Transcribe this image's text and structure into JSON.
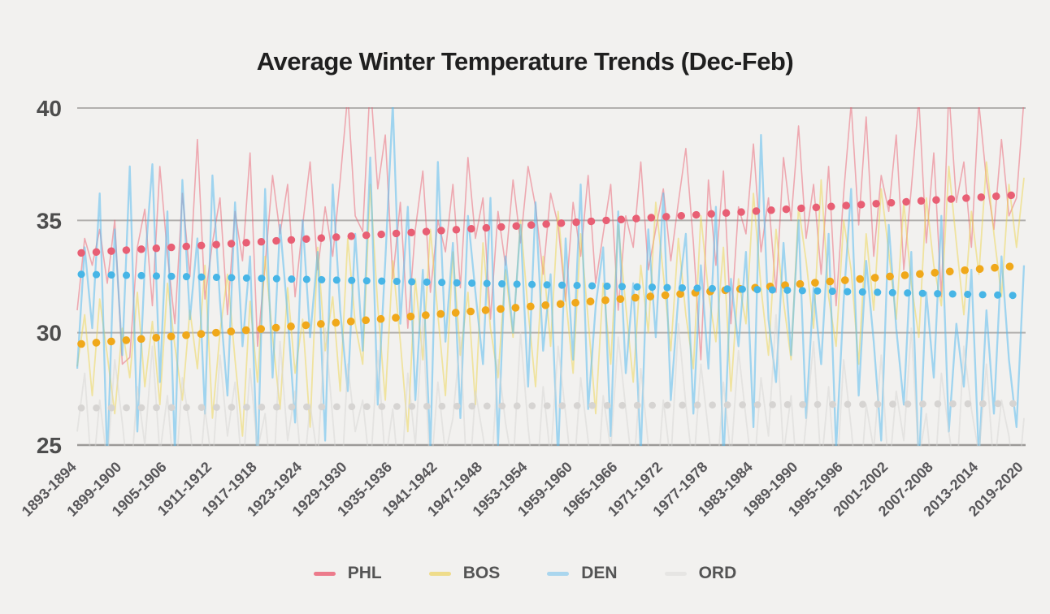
{
  "style": {
    "background": "#f2f1ef",
    "gridline_color": "#b2b0ae",
    "axis_line_color": "#9c9a98",
    "y_label_color": "#4d4d4d",
    "x_label_color": "#58575a",
    "title_color": "#1f1f1f",
    "legend_label_color": "#545454"
  },
  "chart_data": {
    "type": "line",
    "title": "Average Winter Temperature Trends (Dec-Feb)",
    "grid": true,
    "legend_position": "bottom-center",
    "y_axis": {
      "min": 25,
      "max": 40,
      "ticks": [
        40,
        35,
        30,
        25
      ]
    },
    "x_axis": {
      "first_season": "1893-1894",
      "last_season": "2019-2020",
      "season_count": 127,
      "tick_every_years": 6,
      "tick_labels": [
        "1893-1894",
        "1899-1900",
        "1905-1906",
        "1911-1912",
        "1917-1918",
        "1923-1924",
        "1929-1930",
        "1935-1936",
        "1941-1942",
        "1947-1948",
        "1953-1954",
        "1959-1960",
        "1965-1966",
        "1971-1972",
        "1977-1978",
        "1983-1984",
        "1989-1990",
        "1995-1996",
        "2001-2002",
        "2007-2008",
        "2013-2014",
        "2019-2020"
      ]
    },
    "series": [
      {
        "name": "PHL",
        "dot_color": "#e85f74",
        "line_color": "#ea5f72",
        "line_opacity": 0.5,
        "line_width": 1.6,
        "dot_size": 9.4,
        "legend_color": "#ec7b8b",
        "trend": {
          "start": 33.55,
          "end": 36.15
        },
        "values": [
          31.0,
          34.2,
          33.0,
          34.6,
          32.2,
          35.0,
          28.6,
          28.9,
          33.8,
          35.5,
          31.2,
          37.4,
          33.5,
          30.4,
          36.2,
          32.5,
          38.6,
          31.5,
          34.0,
          36.0,
          30.8,
          35.4,
          33.2,
          38.0,
          29.4,
          33.0,
          37.0,
          34.4,
          36.6,
          31.6,
          34.8,
          37.6,
          32.8,
          35.6,
          33.4,
          36.8,
          40.6,
          35.2,
          34.5,
          41.2,
          36.4,
          38.8,
          32.4,
          35.8,
          30.2,
          34.6,
          37.2,
          31.8,
          35.0,
          33.6,
          36.6,
          32.0,
          37.8,
          34.2,
          36.0,
          30.6,
          35.4,
          33.0,
          36.8,
          34.0,
          37.4,
          35.6,
          32.6,
          36.2,
          34.8,
          31.4,
          35.8,
          33.4,
          37.0,
          32.2,
          34.4,
          36.6,
          31.0,
          35.2,
          33.8,
          37.6,
          32.8,
          34.6,
          36.4,
          33.2,
          35.8,
          38.2,
          34.0,
          28.8,
          36.8,
          33.0,
          37.2,
          30.4,
          35.6,
          34.4,
          38.4,
          33.6,
          36.0,
          31.8,
          37.8,
          35.0,
          39.2,
          34.2,
          36.6,
          32.6,
          37.4,
          31.2,
          36.2,
          40.2,
          34.8,
          39.6,
          33.4,
          37.0,
          35.4,
          38.8,
          32.8,
          36.4,
          40.4,
          34.0,
          38.0,
          31.6,
          40.8,
          35.8,
          37.6,
          33.8,
          40.2,
          36.8,
          34.6,
          38.6,
          35.2,
          36.0,
          40.4
        ]
      },
      {
        "name": "BOS",
        "dot_color": "#f0a81a",
        "line_color": "#eed54d",
        "line_opacity": 0.5,
        "line_width": 1.8,
        "dot_size": 9.6,
        "legend_color": "#efdc8a",
        "trend": {
          "start": 29.5,
          "end": 33.0
        },
        "values": [
          28.5,
          30.8,
          27.2,
          31.5,
          29.0,
          26.4,
          30.2,
          28.0,
          31.8,
          27.6,
          30.5,
          26.8,
          32.2,
          29.4,
          27.0,
          31.0,
          28.4,
          33.0,
          26.2,
          30.0,
          32.6,
          28.8,
          25.4,
          31.4,
          27.8,
          33.4,
          29.8,
          26.6,
          32.0,
          28.2,
          30.6,
          25.8,
          33.8,
          29.2,
          31.6,
          27.4,
          34.2,
          30.4,
          28.6,
          36.6,
          31.2,
          27.0,
          33.2,
          29.6,
          25.6,
          32.4,
          28.8,
          34.6,
          30.8,
          27.2,
          33.6,
          29.0,
          31.8,
          26.8,
          34.0,
          30.2,
          28.0,
          32.8,
          29.8,
          35.0,
          31.0,
          27.6,
          33.4,
          29.4,
          35.4,
          31.6,
          28.2,
          34.4,
          30.6,
          26.4,
          32.2,
          28.6,
          34.8,
          31.2,
          27.8,
          33.0,
          30.0,
          35.8,
          32.6,
          29.2,
          34.2,
          30.8,
          28.4,
          35.2,
          31.8,
          29.6,
          33.8,
          27.4,
          32.4,
          30.4,
          36.2,
          32.0,
          29.0,
          34.6,
          31.4,
          28.8,
          35.6,
          33.2,
          30.2,
          36.8,
          31.6,
          29.4,
          35.0,
          32.8,
          28.6,
          34.4,
          31.0,
          36.4,
          33.6,
          30.6,
          35.8,
          32.2,
          29.8,
          36.0,
          33.0,
          31.2,
          37.4,
          34.0,
          30.8,
          35.4,
          32.6,
          37.6,
          34.4,
          31.6,
          36.6,
          33.8,
          36.9
        ]
      },
      {
        "name": "DEN",
        "dot_color": "#47b5e6",
        "line_color": "#5bbcee",
        "line_opacity": 0.55,
        "line_width": 2.3,
        "dot_size": 9.0,
        "legend_color": "#aad6ee",
        "trend": {
          "start": 32.6,
          "end": 31.65
        },
        "values": [
          28.4,
          33.8,
          30.2,
          36.2,
          24.2,
          34.6,
          29.0,
          37.4,
          25.6,
          33.0,
          37.5,
          27.8,
          35.4,
          24.6,
          36.8,
          30.6,
          34.2,
          26.4,
          37.0,
          31.4,
          27.2,
          35.8,
          29.4,
          33.4,
          24.0,
          36.4,
          28.0,
          34.8,
          30.8,
          26.0,
          35.0,
          29.8,
          33.6,
          25.2,
          36.6,
          31.0,
          27.4,
          34.4,
          29.2,
          37.8,
          26.8,
          33.2,
          40.2,
          30.4,
          35.6,
          27.0,
          32.8,
          24.8,
          37.6,
          29.6,
          34.0,
          26.2,
          35.2,
          31.8,
          28.6,
          36.0,
          25.0,
          33.4,
          30.0,
          34.8,
          27.6,
          35.8,
          29.2,
          32.6,
          24.4,
          34.2,
          28.8,
          36.6,
          26.6,
          31.2,
          33.8,
          25.4,
          35.4,
          28.2,
          32.2,
          24.6,
          34.6,
          29.8,
          36.2,
          27.0,
          31.6,
          34.4,
          26.4,
          33.0,
          28.4,
          35.6,
          24.2,
          32.4,
          29.4,
          33.6,
          25.8,
          38.8,
          30.6,
          27.8,
          34.0,
          29.0,
          35.0,
          26.2,
          32.0,
          28.6,
          34.4,
          24.8,
          31.4,
          36.4,
          27.2,
          33.2,
          29.6,
          25.2,
          34.8,
          30.2,
          26.8,
          33.6,
          24.0,
          31.8,
          28.0,
          35.2,
          25.6,
          30.4,
          27.6,
          32.8,
          24.4,
          31.0,
          26.4,
          33.4,
          28.8,
          25.8,
          33.0
        ]
      },
      {
        "name": "ORD",
        "dot_color": "#d6d4d2",
        "line_color": "#d6d5d3",
        "line_opacity": 0.5,
        "line_width": 1.8,
        "dot_size": 8.6,
        "legend_color": "#e6e5e3",
        "trend": {
          "start": 26.65,
          "end": 26.85
        },
        "values": [
          25.6,
          28.2,
          23.4,
          27.0,
          24.2,
          28.8,
          26.0,
          22.8,
          27.6,
          25.0,
          29.4,
          24.6,
          27.2,
          23.0,
          28.0,
          25.8,
          22.4,
          26.6,
          24.0,
          29.0,
          25.4,
          27.8,
          23.6,
          28.4,
          24.8,
          26.4,
          22.6,
          29.6,
          25.2,
          27.4,
          23.2,
          26.8,
          24.4,
          30.2,
          26.2,
          22.2,
          28.6,
          25.6,
          27.0,
          23.8,
          29.2,
          24.2,
          26.6,
          22.8,
          28.2,
          25.0,
          30.6,
          23.4,
          27.8,
          24.6,
          26.2,
          29.8,
          22.4,
          27.4,
          25.4,
          23.0,
          28.8,
          26.0,
          24.0,
          30.0,
          25.8,
          22.6,
          27.6,
          24.4,
          29.4,
          26.4,
          23.2,
          28.0,
          25.2,
          22.0,
          27.2,
          24.8,
          29.8,
          26.6,
          23.6,
          28.4,
          25.0,
          22.4,
          27.0,
          24.2,
          30.4,
          26.8,
          23.8,
          28.6,
          25.6,
          22.8,
          27.8,
          24.4,
          29.2,
          26.2,
          23.4,
          28.0,
          25.4,
          30.8,
          24.6,
          27.2,
          22.6,
          26.0,
          29.6,
          24.0,
          27.6,
          23.0,
          28.8,
          25.8,
          22.2,
          26.8,
          24.8,
          29.0,
          23.6,
          27.4,
          25.2,
          30.2,
          24.4,
          26.4,
          22.8,
          28.2,
          25.6,
          23.2,
          29.4,
          26.6,
          24.6,
          28.6,
          23.8,
          27.0,
          25.4,
          22.4,
          26.2
        ]
      }
    ]
  }
}
